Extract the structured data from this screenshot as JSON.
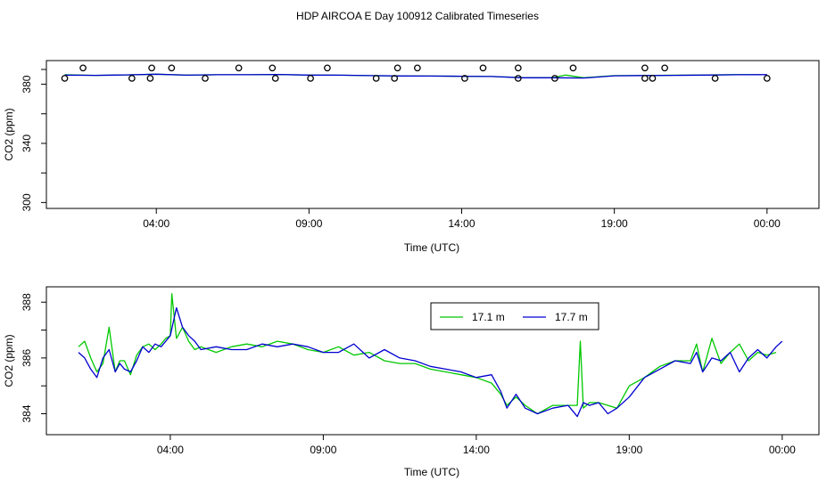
{
  "figure_title": "HDP AIRCOA E  Day 100912  Calibrated Timeseries",
  "colors": {
    "green": "#00c800",
    "blue": "#0000d0",
    "axis": "#000000"
  },
  "chart_data": [
    {
      "type": "line",
      "title": "",
      "xlabel": "Time (UTC)",
      "ylabel": "CO2 (ppm)",
      "xlim": [
        0.4,
        25.7
      ],
      "ylim": [
        296,
        396
      ],
      "xticks": [
        {
          "value": 4,
          "label": "04:00"
        },
        {
          "value": 9,
          "label": "09:00"
        },
        {
          "value": 14,
          "label": "14:00"
        },
        {
          "value": 19,
          "label": "19:00"
        },
        {
          "value": 24,
          "label": "00:00"
        }
      ],
      "yticks": [
        {
          "value": 300,
          "label": "300"
        },
        {
          "value": 340,
          "label": "340"
        },
        {
          "value": 380,
          "label": "380"
        }
      ],
      "yminor": [
        320,
        360,
        390
      ],
      "series": [
        {
          "color": "green",
          "x": [
            1.0,
            2.0,
            3.0,
            4.0,
            5.0,
            6.0,
            7.0,
            8.0,
            9.0,
            10.0,
            11.0,
            12.0,
            13.0,
            14.0,
            15.0,
            16.0,
            17.0,
            17.4,
            18.0,
            19.0,
            20.0,
            21.0,
            22.0,
            23.0,
            23.8
          ],
          "y": [
            386.4,
            386.0,
            386.3,
            386.8,
            386.2,
            386.4,
            386.4,
            386.6,
            386.2,
            386.1,
            385.8,
            385.6,
            385.5,
            385.4,
            385.2,
            384.5,
            384.5,
            386.2,
            384.4,
            385.8,
            385.9,
            386.1,
            386.3,
            386.5,
            386.4
          ]
        },
        {
          "color": "blue",
          "x": [
            1.0,
            2.0,
            3.0,
            4.0,
            5.0,
            6.0,
            7.0,
            8.0,
            9.0,
            10.0,
            11.0,
            12.0,
            13.0,
            14.0,
            15.0,
            16.0,
            17.0,
            18.0,
            19.0,
            20.0,
            21.0,
            22.0,
            23.0,
            24.0
          ],
          "y": [
            386.2,
            386.0,
            386.3,
            386.8,
            386.1,
            386.4,
            386.4,
            386.6,
            386.2,
            386.1,
            385.8,
            385.6,
            385.5,
            385.4,
            385.2,
            384.4,
            384.4,
            384.2,
            385.7,
            385.9,
            386.0,
            386.2,
            386.4,
            386.5
          ]
        }
      ],
      "markers": {
        "symbol": "open-circle",
        "upper": {
          "y": 391,
          "x": [
            1.6,
            3.85,
            4.5,
            6.7,
            7.8,
            9.6,
            11.9,
            12.55,
            14.7,
            15.85,
            17.65,
            20.0,
            20.65
          ]
        },
        "lower": {
          "y": 384,
          "x": [
            1.0,
            3.2,
            3.8,
            5.6,
            7.9,
            9.05,
            11.2,
            11.8,
            14.1,
            15.85,
            17.05,
            20.25,
            20.0,
            22.3,
            24.0
          ]
        }
      }
    },
    {
      "type": "line",
      "title": "",
      "xlabel": "Time (UTC)",
      "ylabel": "CO2 (ppm)",
      "xlim": [
        -0.05,
        25.2
      ],
      "ylim": [
        383.25,
        388.55
      ],
      "xticks": [
        {
          "value": 4,
          "label": "04:00"
        },
        {
          "value": 9,
          "label": "09:00"
        },
        {
          "value": 14,
          "label": "14:00"
        },
        {
          "value": 19,
          "label": "19:00"
        },
        {
          "value": 24,
          "label": "00:00"
        }
      ],
      "yticks": [
        {
          "value": 384,
          "label": "384"
        },
        {
          "value": 386,
          "label": "386"
        },
        {
          "value": 388,
          "label": "388"
        }
      ],
      "yminor": [
        385,
        387
      ],
      "legend": {
        "placement": "top-center",
        "entries": [
          {
            "label": "17.1 m",
            "color": "green"
          },
          {
            "label": "17.7 m",
            "color": "blue"
          }
        ]
      },
      "series": [
        {
          "name": "17.1 m",
          "color": "green",
          "x": [
            1.0,
            1.2,
            1.4,
            1.6,
            1.8,
            2.0,
            2.2,
            2.35,
            2.5,
            2.7,
            2.9,
            3.1,
            3.3,
            3.5,
            3.7,
            3.85,
            4.0,
            4.05,
            4.2,
            4.4,
            4.6,
            4.8,
            5.0,
            5.5,
            6.0,
            6.5,
            7.0,
            7.5,
            8.0,
            8.5,
            9.0,
            9.5,
            10.0,
            10.5,
            11.0,
            11.5,
            12.0,
            12.5,
            13.0,
            13.5,
            14.0,
            14.5,
            14.8,
            15.0,
            15.3,
            15.6,
            16.0,
            16.5,
            17.0,
            17.3,
            17.4,
            17.5,
            17.7,
            18.0,
            18.3,
            18.6,
            19.0,
            19.5,
            20.0,
            20.5,
            21.0,
            21.2,
            21.4,
            21.7,
            22.0,
            22.3,
            22.6,
            22.9,
            23.2,
            23.5,
            23.8
          ],
          "y": [
            386.4,
            386.6,
            386.0,
            385.5,
            385.8,
            387.1,
            385.5,
            385.9,
            385.9,
            385.4,
            386.1,
            386.4,
            386.5,
            386.3,
            386.5,
            386.7,
            386.8,
            388.3,
            386.7,
            387.1,
            386.6,
            386.3,
            386.4,
            386.2,
            386.4,
            386.5,
            386.4,
            386.6,
            386.5,
            386.3,
            386.2,
            386.4,
            386.1,
            386.2,
            385.9,
            385.8,
            385.8,
            385.6,
            385.5,
            385.4,
            385.3,
            385.1,
            384.7,
            384.3,
            384.6,
            384.3,
            384.0,
            384.3,
            384.3,
            384.3,
            386.6,
            384.2,
            384.4,
            384.4,
            384.3,
            384.2,
            385.0,
            385.3,
            385.7,
            385.9,
            385.9,
            386.5,
            385.5,
            386.7,
            385.8,
            386.2,
            386.5,
            385.9,
            386.2,
            386.1,
            386.2
          ]
        },
        {
          "name": "17.7 m",
          "color": "blue",
          "x": [
            1.0,
            1.2,
            1.4,
            1.6,
            1.8,
            2.0,
            2.2,
            2.35,
            2.5,
            2.7,
            2.9,
            3.1,
            3.3,
            3.5,
            3.7,
            3.85,
            4.0,
            4.2,
            4.4,
            4.6,
            4.8,
            5.0,
            5.5,
            6.0,
            6.5,
            7.0,
            7.5,
            8.0,
            8.5,
            9.0,
            9.5,
            10.0,
            10.5,
            11.0,
            11.5,
            12.0,
            12.5,
            13.0,
            13.5,
            14.0,
            14.5,
            14.8,
            15.0,
            15.3,
            15.6,
            16.0,
            16.5,
            17.0,
            17.3,
            17.5,
            17.7,
            18.0,
            18.3,
            18.6,
            19.0,
            19.5,
            20.0,
            20.5,
            21.0,
            21.2,
            21.4,
            21.7,
            22.0,
            22.3,
            22.6,
            22.9,
            23.2,
            23.5,
            23.8,
            24.0
          ],
          "y": [
            386.2,
            386.0,
            385.6,
            385.3,
            386.0,
            386.3,
            385.5,
            385.8,
            385.6,
            385.5,
            385.9,
            386.4,
            386.2,
            386.5,
            386.4,
            386.6,
            386.8,
            387.8,
            387.1,
            386.8,
            386.6,
            386.3,
            386.4,
            386.3,
            386.3,
            386.5,
            386.4,
            386.5,
            386.4,
            386.2,
            386.2,
            386.5,
            386.0,
            386.3,
            386.0,
            385.9,
            385.7,
            385.6,
            385.5,
            385.3,
            385.4,
            384.8,
            384.2,
            384.7,
            384.2,
            384.0,
            384.2,
            384.3,
            383.9,
            384.4,
            384.3,
            384.4,
            384.0,
            384.2,
            384.6,
            385.3,
            385.6,
            385.9,
            385.8,
            386.2,
            385.5,
            386.0,
            385.9,
            386.2,
            385.5,
            386.0,
            386.3,
            386.0,
            386.4,
            386.6
          ]
        }
      ]
    }
  ]
}
